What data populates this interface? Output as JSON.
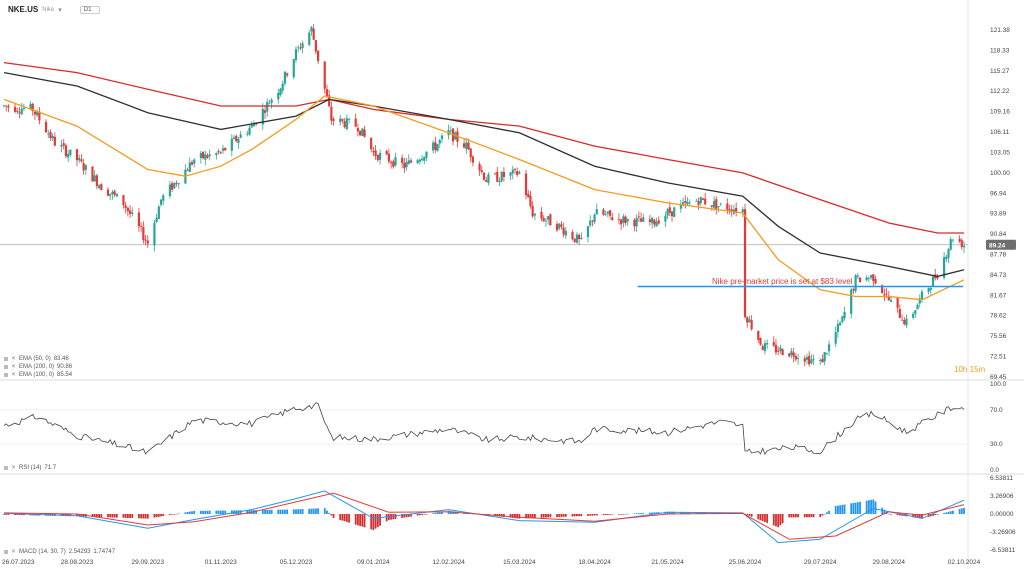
{
  "header": {
    "symbol": "NKE.US",
    "subtitle": "Nike",
    "timeframe": "D1"
  },
  "indicators": [
    {
      "label": "EMA (50, 0)",
      "value": "83.46",
      "color": "#f59a1e"
    },
    {
      "label": "EMA (200, 0)",
      "value": "90.86",
      "color": "#d62a2a"
    },
    {
      "label": "EMA (100, 0)",
      "value": "85.54",
      "color": "#2f2f2f"
    }
  ],
  "rsi_label": {
    "name": "RSI (14)",
    "value": "71.7"
  },
  "macd_label": {
    "name": "MACD (14, 30, 7)",
    "v1": "2.54293",
    "v2": "1.74747"
  },
  "annotation": {
    "text": "Nike pre-market price is set at $83 level",
    "color": "#e53935"
  },
  "countdown": "10h 15m",
  "chart_data": {
    "type": "candlestick",
    "price_axis": [
      "121.38",
      "118.33",
      "115.27",
      "112.22",
      "109.16",
      "106.11",
      "103.05",
      "100.00",
      "96.94",
      "93.89",
      "90.84",
      "87.78",
      "84.73",
      "81.67",
      "78.62",
      "75.56",
      "72.51",
      "69.45"
    ],
    "last_price": "89.24",
    "date_axis": [
      "26.07.2023",
      "28.08.2023",
      "29.09.2023",
      "01.11.2023",
      "05.12.2023",
      "09.01.2024",
      "12.02.2024",
      "15.03.2024",
      "18.04.2024",
      "21.05.2024",
      "25.06.2024",
      "29.07.2024",
      "29.08.2024",
      "02.10.2024"
    ],
    "horizontal_line": {
      "value": 83,
      "color": "#2196f3"
    },
    "price_path": [
      [
        "2023-07-26",
        110
      ],
      [
        "2023-08-08",
        109.5
      ],
      [
        "2023-08-18",
        104.5
      ],
      [
        "2023-08-28",
        102
      ],
      [
        "2023-09-08",
        98
      ],
      [
        "2023-09-18",
        95.5
      ],
      [
        "2023-09-29",
        89.5
      ],
      [
        "2023-10-05",
        96
      ],
      [
        "2023-10-20",
        102
      ],
      [
        "2023-11-01",
        103
      ],
      [
        "2023-11-15",
        107
      ],
      [
        "2023-11-28",
        113
      ],
      [
        "2023-12-05",
        118
      ],
      [
        "2023-12-12",
        121.5
      ],
      [
        "2023-12-21",
        108
      ],
      [
        "2024-01-02",
        107
      ],
      [
        "2024-01-09",
        103
      ],
      [
        "2024-01-23",
        101
      ],
      [
        "2024-02-06",
        104
      ],
      [
        "2024-02-12",
        106
      ],
      [
        "2024-02-20",
        104
      ],
      [
        "2024-02-29",
        99
      ],
      [
        "2024-03-15",
        100
      ],
      [
        "2024-03-21",
        94
      ],
      [
        "2024-04-02",
        92
      ],
      [
        "2024-04-12",
        89.5
      ],
      [
        "2024-04-18",
        94
      ],
      [
        "2024-04-30",
        93
      ],
      [
        "2024-05-14",
        92.5
      ],
      [
        "2024-05-21",
        94
      ],
      [
        "2024-06-04",
        96
      ],
      [
        "2024-06-14",
        95
      ],
      [
        "2024-06-24",
        94.5
      ],
      [
        "2024-06-25",
        79
      ],
      [
        "2024-07-03",
        74
      ],
      [
        "2024-07-17",
        73
      ],
      [
        "2024-07-29",
        71.5
      ],
      [
        "2024-08-08",
        78
      ],
      [
        "2024-08-14",
        84
      ],
      [
        "2024-08-22",
        84.5
      ],
      [
        "2024-08-29",
        81
      ],
      [
        "2024-09-06",
        77.5
      ],
      [
        "2024-09-13",
        81.5
      ],
      [
        "2024-09-20",
        85
      ],
      [
        "2024-09-27",
        90.5
      ],
      [
        "2024-10-02",
        89.24
      ]
    ],
    "ema50": [
      [
        "2023-07-26",
        111
      ],
      [
        "2023-08-28",
        107
      ],
      [
        "2023-09-29",
        100.5
      ],
      [
        "2023-10-16",
        99.5
      ],
      [
        "2023-11-01",
        101
      ],
      [
        "2023-11-15",
        103.5
      ],
      [
        "2023-12-05",
        108
      ],
      [
        "2023-12-18",
        111.5
      ],
      [
        "2024-01-09",
        110
      ],
      [
        "2024-02-12",
        106
      ],
      [
        "2024-03-15",
        102
      ],
      [
        "2024-04-18",
        97.5
      ],
      [
        "2024-05-21",
        95.5
      ],
      [
        "2024-06-24",
        94
      ],
      [
        "2024-07-10",
        87
      ],
      [
        "2024-07-29",
        82.5
      ],
      [
        "2024-08-14",
        81.5
      ],
      [
        "2024-08-29",
        81.5
      ],
      [
        "2024-09-13",
        81
      ],
      [
        "2024-10-02",
        84
      ]
    ],
    "ema100": [
      [
        "2023-07-26",
        115
      ],
      [
        "2023-08-28",
        113
      ],
      [
        "2023-09-29",
        109
      ],
      [
        "2023-11-01",
        106.5
      ],
      [
        "2023-12-05",
        108.5
      ],
      [
        "2023-12-20",
        111
      ],
      [
        "2024-01-09",
        110
      ],
      [
        "2024-02-12",
        108
      ],
      [
        "2024-03-15",
        106
      ],
      [
        "2024-04-18",
        101
      ],
      [
        "2024-05-21",
        98.5
      ],
      [
        "2024-06-24",
        96.5
      ],
      [
        "2024-07-10",
        92
      ],
      [
        "2024-07-29",
        88
      ],
      [
        "2024-08-29",
        86
      ],
      [
        "2024-09-20",
        84.5
      ],
      [
        "2024-10-02",
        85.5
      ]
    ],
    "ema200": [
      [
        "2023-07-26",
        116.5
      ],
      [
        "2023-08-28",
        115
      ],
      [
        "2023-09-29",
        112.5
      ],
      [
        "2023-11-01",
        110
      ],
      [
        "2023-12-05",
        110
      ],
      [
        "2023-12-20",
        111
      ],
      [
        "2024-01-09",
        109.5
      ],
      [
        "2024-02-12",
        108
      ],
      [
        "2024-03-15",
        107
      ],
      [
        "2024-04-18",
        104
      ],
      [
        "2024-05-21",
        102
      ],
      [
        "2024-06-24",
        100
      ],
      [
        "2024-07-29",
        96
      ],
      [
        "2024-08-29",
        92.5
      ],
      [
        "2024-09-20",
        91
      ],
      [
        "2024-10-02",
        91
      ]
    ],
    "rsi": {
      "axis": [
        "100.0",
        "70.0",
        "30.0",
        "0.0"
      ],
      "path": [
        [
          "2023-07-26",
          52
        ],
        [
          "2023-08-10",
          62
        ],
        [
          "2023-08-28",
          40
        ],
        [
          "2023-09-18",
          28
        ],
        [
          "2023-09-29",
          20
        ],
        [
          "2023-10-20",
          58
        ],
        [
          "2023-11-15",
          54
        ],
        [
          "2023-12-05",
          72
        ],
        [
          "2023-12-15",
          75
        ],
        [
          "2023-12-21",
          38
        ],
        [
          "2024-01-09",
          36
        ],
        [
          "2024-02-12",
          48
        ],
        [
          "2024-02-29",
          35
        ],
        [
          "2024-03-15",
          38
        ],
        [
          "2024-04-12",
          33
        ],
        [
          "2024-04-18",
          48
        ],
        [
          "2024-05-21",
          44
        ],
        [
          "2024-06-14",
          56
        ],
        [
          "2024-06-24",
          52
        ],
        [
          "2024-06-25",
          20
        ],
        [
          "2024-07-17",
          26
        ],
        [
          "2024-07-29",
          22
        ],
        [
          "2024-08-14",
          58
        ],
        [
          "2024-08-22",
          66
        ],
        [
          "2024-09-06",
          44
        ],
        [
          "2024-09-27",
          74
        ],
        [
          "2024-10-02",
          71.7
        ]
      ]
    },
    "macd": {
      "axis": [
        "6.53811",
        "3.26906",
        "0.00000",
        "-3.26906",
        "-6.53811"
      ],
      "macd": [
        [
          "2023-07-26",
          0.1
        ],
        [
          "2023-08-28",
          -0.3
        ],
        [
          "2023-09-29",
          -2.6
        ],
        [
          "2023-10-20",
          -1.0
        ],
        [
          "2023-11-15",
          0.8
        ],
        [
          "2023-12-05",
          2.8
        ],
        [
          "2023-12-18",
          4.2
        ],
        [
          "2024-01-09",
          -0.8
        ],
        [
          "2024-02-12",
          0.8
        ],
        [
          "2024-03-15",
          -1.2
        ],
        [
          "2024-04-18",
          -1.5
        ],
        [
          "2024-05-21",
          0.3
        ],
        [
          "2024-06-24",
          0.2
        ],
        [
          "2024-07-10",
          -5.2
        ],
        [
          "2024-07-29",
          -4.6
        ],
        [
          "2024-08-22",
          1.0
        ],
        [
          "2024-09-13",
          -0.8
        ],
        [
          "2024-10-02",
          2.5
        ]
      ],
      "signal": [
        [
          "2023-07-26",
          0.2
        ],
        [
          "2023-08-28",
          0
        ],
        [
          "2023-09-29",
          -2.0
        ],
        [
          "2023-10-20",
          -1.4
        ],
        [
          "2023-11-15",
          0.3
        ],
        [
          "2023-12-05",
          2.2
        ],
        [
          "2023-12-22",
          3.8
        ],
        [
          "2024-01-16",
          0.3
        ],
        [
          "2024-02-12",
          0.4
        ],
        [
          "2024-03-15",
          -0.6
        ],
        [
          "2024-04-18",
          -1.3
        ],
        [
          "2024-05-21",
          0
        ],
        [
          "2024-06-24",
          0.1
        ],
        [
          "2024-07-15",
          -4.6
        ],
        [
          "2024-08-05",
          -4.0
        ],
        [
          "2024-08-29",
          0.4
        ],
        [
          "2024-09-13",
          -0.2
        ],
        [
          "2024-10-02",
          1.7
        ]
      ],
      "hist_color_pos": "#2196f3",
      "hist_color_neg": "#d32f2f"
    }
  }
}
